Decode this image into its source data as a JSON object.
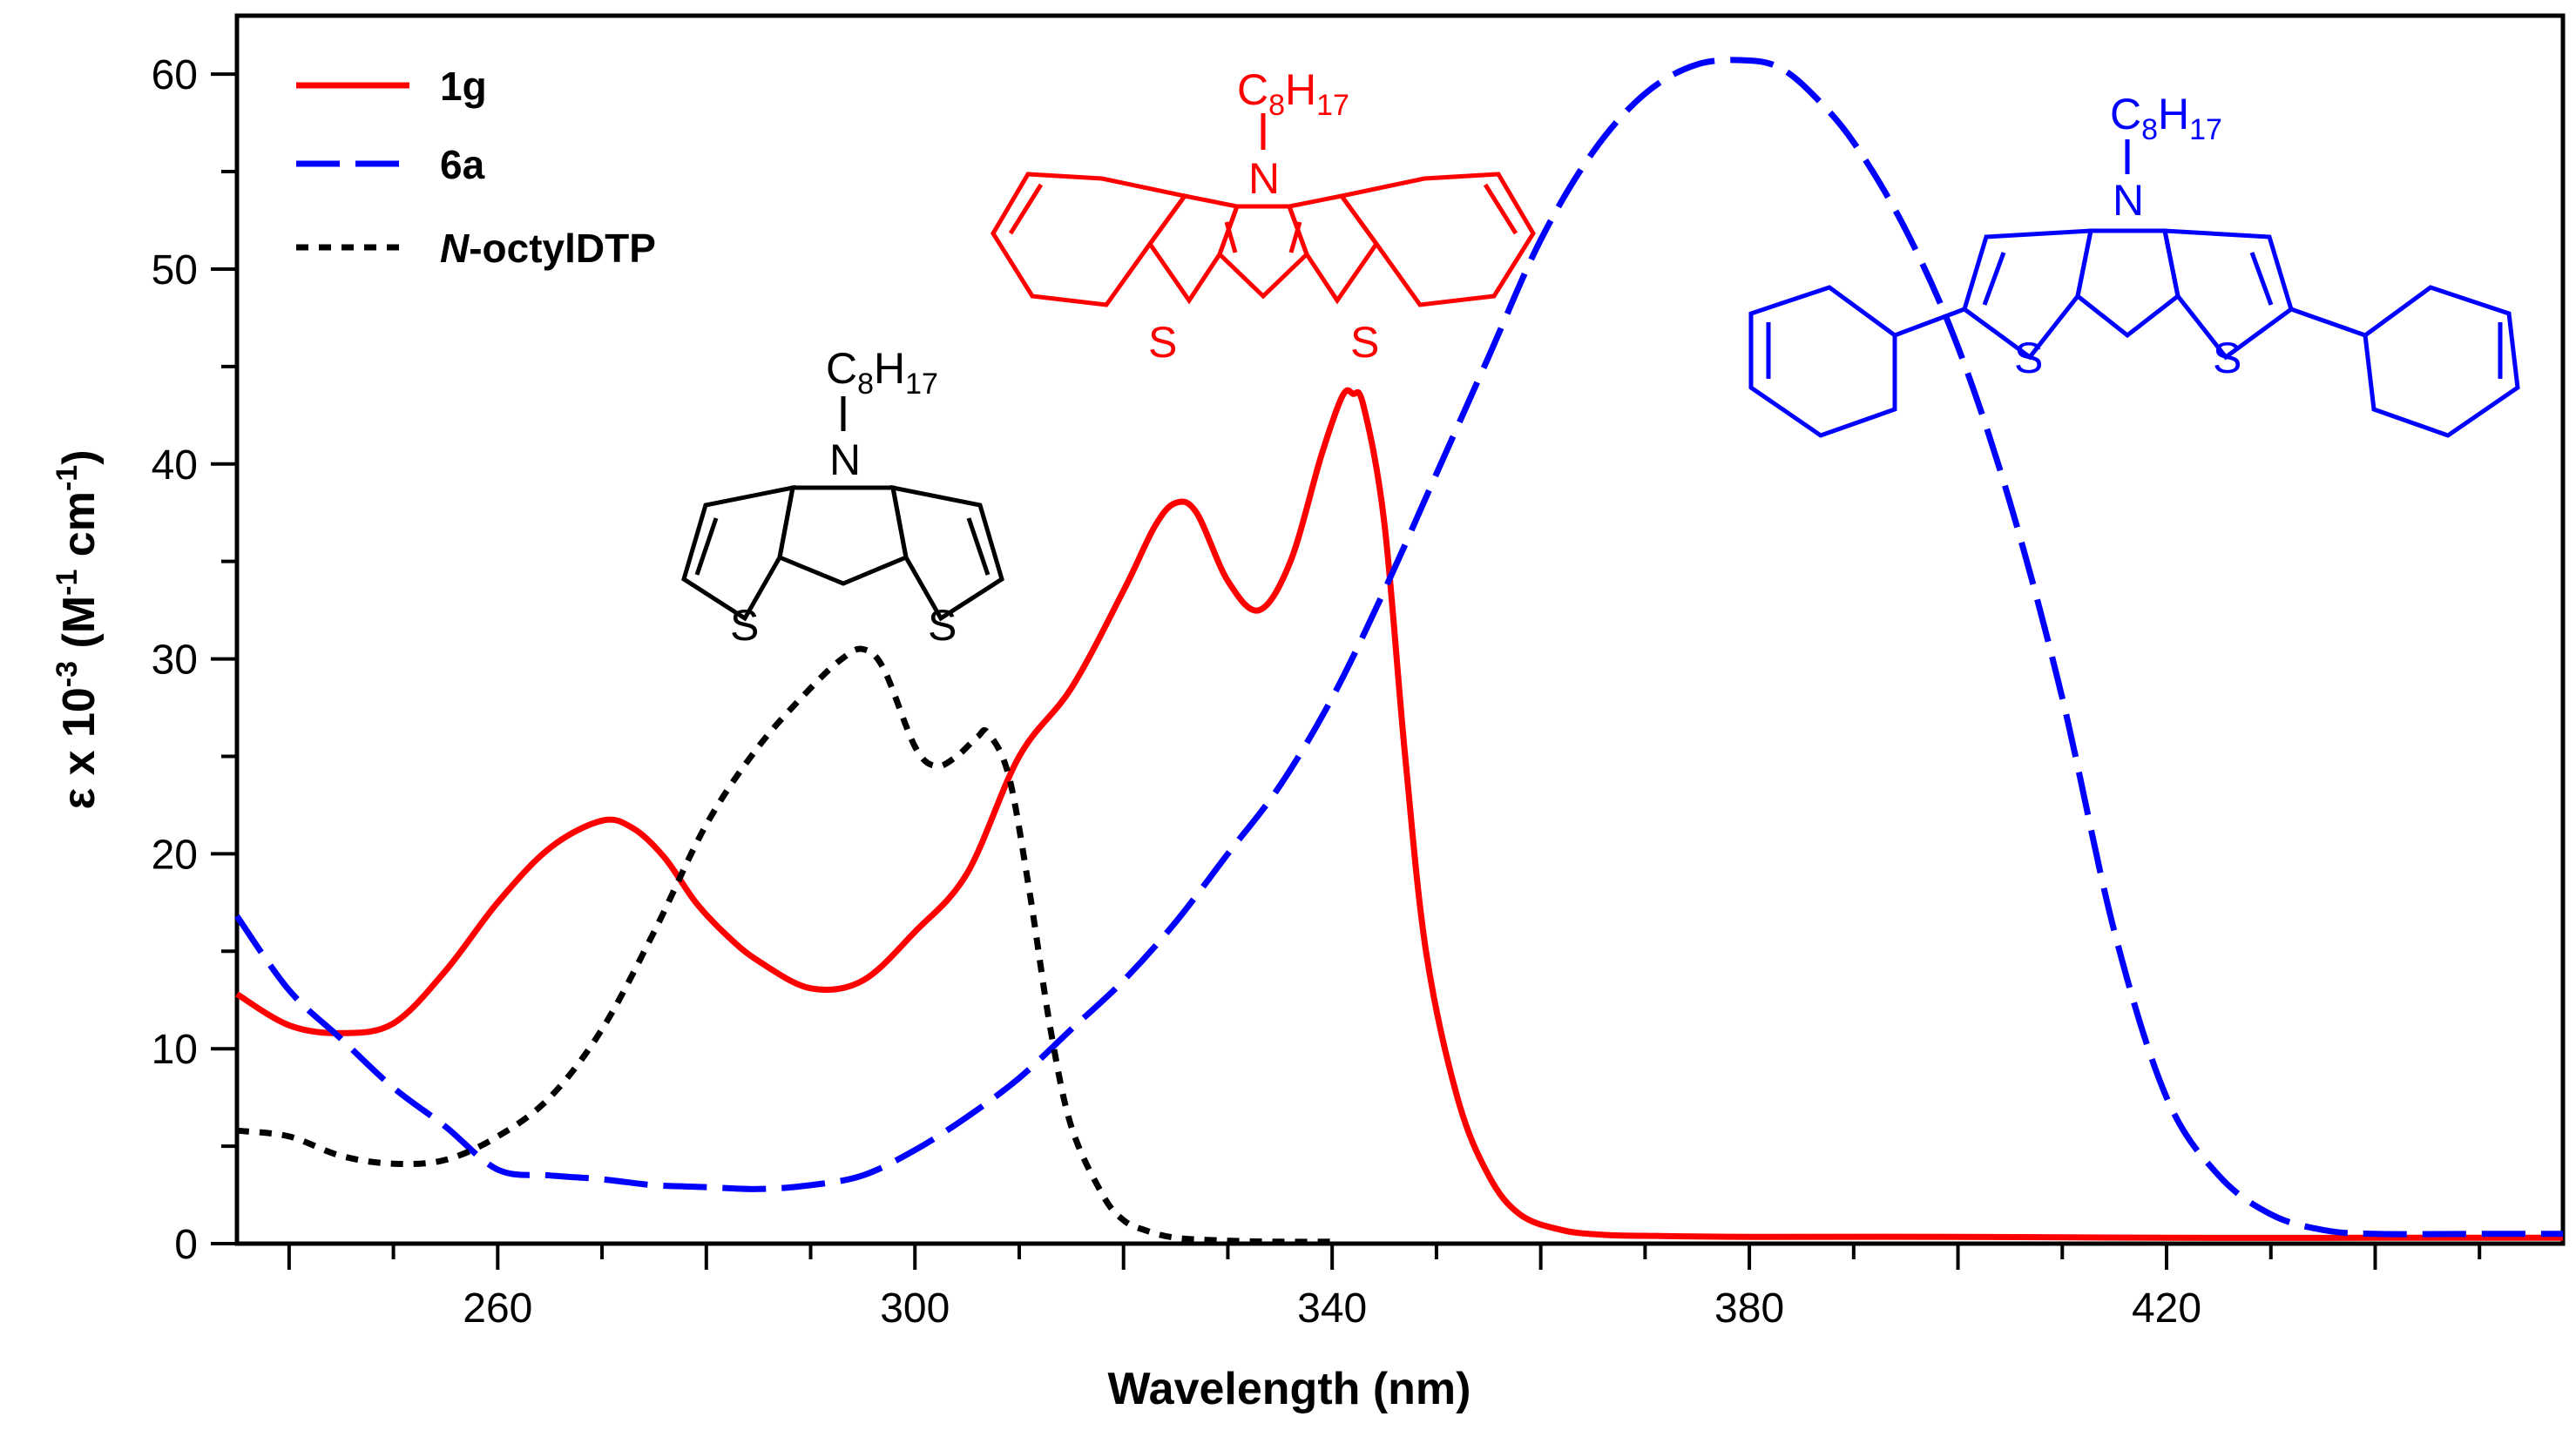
{
  "chart_data": {
    "type": "line",
    "title": "",
    "xlabel": "Wavelength (nm)",
    "ylabel": "ε x 10-3 (M-1 cm-1)",
    "ylabel_parts": {
      "base": "ε x 10",
      "exp1": "-3",
      "mid": " (M",
      "exp2": "-1",
      "mid2": " cm",
      "exp3": "-1",
      "end": ")"
    },
    "xlim": [
      235,
      458
    ],
    "ylim": [
      0,
      63
    ],
    "x_ticks": [
      260,
      300,
      340,
      380,
      420
    ],
    "y_ticks": [
      0,
      10,
      20,
      30,
      40,
      50,
      60
    ],
    "legend_position": "top-left",
    "series": [
      {
        "name": "1g",
        "color": "#ff0000",
        "dash": "solid",
        "x": [
          235,
          240,
          245,
          250,
          255,
          260,
          265,
          270,
          273,
          276,
          279,
          282,
          285,
          290,
          295,
          300,
          305,
          310,
          315,
          320,
          323,
          325,
          327,
          330,
          333,
          336,
          339,
          341,
          342,
          343,
          345,
          347,
          349,
          352,
          355,
          358,
          362,
          366,
          370,
          380,
          400,
          420,
          440,
          458
        ],
        "y": [
          12.8,
          11.2,
          10.8,
          11.3,
          14.0,
          17.5,
          20.3,
          21.7,
          21.3,
          19.8,
          17.5,
          15.8,
          14.5,
          13.1,
          13.5,
          16.0,
          19.0,
          25.0,
          28.5,
          33.5,
          36.8,
          38.0,
          37.5,
          34.0,
          32.5,
          35.0,
          40.5,
          43.5,
          43.6,
          43.0,
          37.0,
          25.0,
          15.0,
          7.5,
          3.5,
          1.5,
          0.7,
          0.45,
          0.4,
          0.35,
          0.35,
          0.3,
          0.3,
          0.3
        ]
      },
      {
        "name": "6a",
        "color": "#0000ff",
        "dash": "long-dash",
        "x": [
          235,
          240,
          245,
          250,
          255,
          260,
          265,
          270,
          275,
          280,
          285,
          290,
          295,
          300,
          305,
          310,
          315,
          320,
          325,
          330,
          335,
          340,
          345,
          350,
          355,
          360,
          365,
          370,
          375,
          380,
          383,
          386,
          390,
          395,
          400,
          405,
          410,
          415,
          420,
          425,
          430,
          435,
          440,
          450,
          458
        ],
        "y": [
          16.8,
          13.0,
          10.5,
          8.0,
          6.0,
          3.8,
          3.5,
          3.3,
          3.0,
          2.9,
          2.8,
          3.0,
          3.5,
          4.8,
          6.5,
          8.5,
          11.0,
          13.5,
          16.5,
          20.0,
          23.5,
          28.0,
          33.5,
          39.5,
          45.5,
          51.5,
          56.0,
          59.0,
          60.5,
          60.7,
          60.3,
          59.0,
          56.5,
          52.0,
          46.0,
          38.0,
          28.0,
          16.0,
          7.5,
          3.5,
          1.5,
          0.7,
          0.5,
          0.5,
          0.5
        ]
      },
      {
        "name": "N-octylDTP",
        "name_italic": "N",
        "name_rest": "-octylDTP",
        "color": "#000000",
        "dash": "short-dash",
        "x": [
          235,
          240,
          245,
          250,
          255,
          260,
          265,
          270,
          275,
          280,
          285,
          290,
          293,
          295,
          297,
          300,
          302,
          304,
          306,
          307,
          309,
          311,
          313,
          315,
          318,
          320,
          322,
          325,
          330,
          335,
          340
        ],
        "y": [
          5.8,
          5.5,
          4.5,
          4.1,
          4.3,
          5.5,
          7.5,
          11.0,
          16.0,
          21.5,
          25.5,
          28.5,
          30.0,
          30.5,
          29.5,
          25.5,
          24.5,
          25.0,
          26.0,
          26.2,
          24.0,
          18.0,
          11.0,
          6.0,
          2.5,
          1.2,
          0.7,
          0.3,
          0.15,
          0.1,
          0.1
        ]
      }
    ],
    "annotations": [
      {
        "label": "1g structure",
        "substituent": "C8H17",
        "heteroatoms": [
          "N",
          "S",
          "S"
        ],
        "color": "#ff0000"
      },
      {
        "label": "6a structure",
        "substituent": "C8H17",
        "heteroatoms": [
          "N",
          "S",
          "S"
        ],
        "color": "#0000ff"
      },
      {
        "label": "N-octylDTP structure",
        "substituent": "C8H17",
        "heteroatoms": [
          "N",
          "S",
          "S"
        ],
        "color": "#000000"
      }
    ]
  }
}
